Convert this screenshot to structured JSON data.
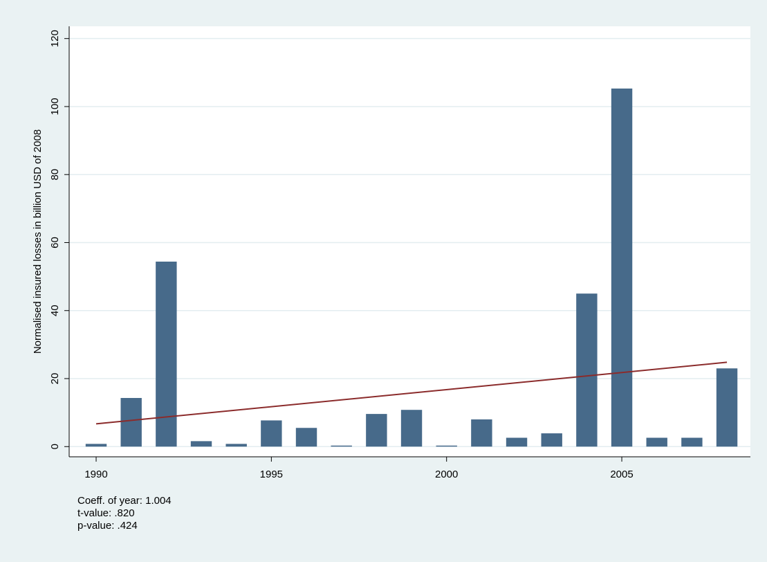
{
  "chart_data": {
    "type": "bar",
    "y_label": "Normalised insured losses in billion USD of 2008",
    "x": [
      1990,
      1991,
      1992,
      1993,
      1994,
      1995,
      1996,
      1997,
      1998,
      1999,
      2000,
      2001,
      2002,
      2003,
      2004,
      2005,
      2006,
      2007,
      2008
    ],
    "values": [
      0.8,
      14.3,
      54.4,
      1.6,
      0.8,
      7.7,
      5.5,
      0.3,
      9.6,
      10.8,
      0.3,
      8.0,
      2.6,
      3.9,
      45.0,
      105.3,
      2.6,
      2.6,
      23.0
    ],
    "color": "#476a8a",
    "trend": {
      "x": [
        1990,
        2008
      ],
      "values": [
        6.7,
        24.8
      ],
      "color": "#8b2b2b"
    },
    "xlim": [
      1989.23,
      2008.67
    ],
    "xticks": [
      1990,
      1995,
      2000,
      2005
    ],
    "ylim": [
      -3,
      123.6
    ],
    "yticks": [
      0,
      20,
      40,
      60,
      80,
      100,
      120
    ],
    "grid": true,
    "notes": [
      "Coeff. of year: 1.004",
      "t-value: .820",
      "p-value: .424"
    ]
  }
}
